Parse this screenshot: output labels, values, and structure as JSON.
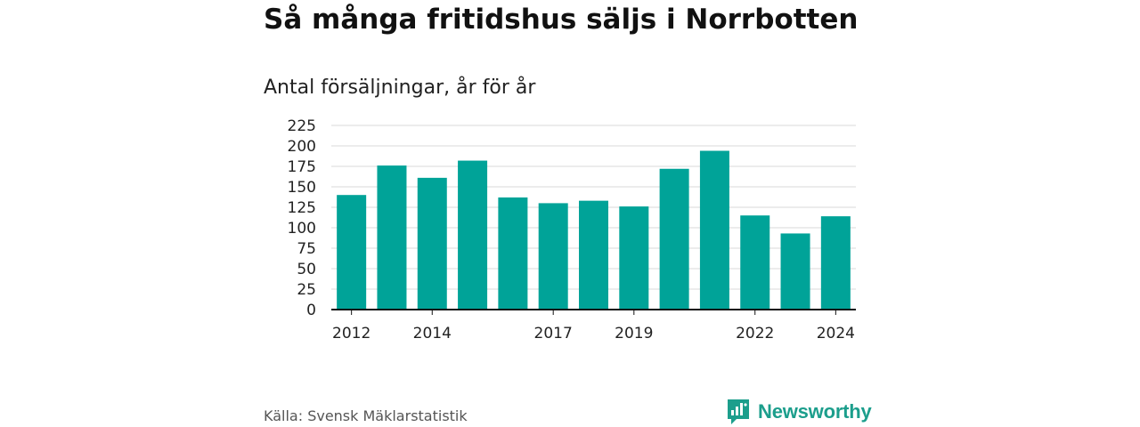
{
  "title": "Så många fritidshus säljs i Norrbotten",
  "subtitle": "Antal försäljningar, år för år",
  "source": "Källa: Svensk Mäklarstatistik",
  "brand": {
    "name": "Newsworthy",
    "icon": "newsworthy-logo-icon",
    "color": "#1c9e8c"
  },
  "chart_data": {
    "type": "bar",
    "x": [
      2012,
      2013,
      2014,
      2015,
      2016,
      2017,
      2018,
      2019,
      2020,
      2021,
      2022,
      2023,
      2024
    ],
    "values": [
      140,
      176,
      161,
      182,
      137,
      130,
      133,
      126,
      172,
      194,
      115,
      93,
      114
    ],
    "xticks": [
      "2012",
      "2014",
      "2017",
      "2019",
      "2022",
      "2024"
    ],
    "yticks": [
      0,
      25,
      50,
      75,
      100,
      125,
      150,
      175,
      200,
      225
    ],
    "ylim": [
      0,
      225
    ],
    "grid": true,
    "bar_color": "#00a398"
  }
}
